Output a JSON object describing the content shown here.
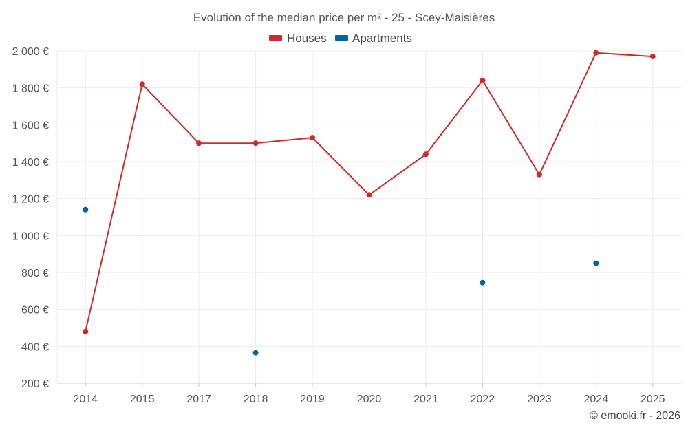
{
  "chart_data": {
    "type": "line",
    "title": "Evolution of the median price per m² - 25 - Scey-Maisières",
    "categories": [
      "2014",
      "2015",
      "2017",
      "2018",
      "2019",
      "2020",
      "2021",
      "2022",
      "2023",
      "2024",
      "2025"
    ],
    "series": [
      {
        "name": "Houses",
        "color": "#d62728",
        "values": [
          480,
          1820,
          1500,
          1500,
          1530,
          1220,
          1440,
          1840,
          1330,
          1990,
          1970
        ],
        "style": "line-with-markers"
      },
      {
        "name": "Apartments",
        "color": "#00669e",
        "values": [
          1140,
          null,
          null,
          365,
          null,
          null,
          null,
          745,
          null,
          850,
          null
        ],
        "style": "markers-only"
      }
    ],
    "ylim": [
      200,
      2000
    ],
    "yticks": [
      200,
      400,
      600,
      800,
      1000,
      1200,
      1400,
      1600,
      1800,
      2000
    ],
    "ytick_labels": [
      "200 €",
      "400 €",
      "600 €",
      "800 €",
      "1 000 €",
      "1 200 €",
      "1 400 €",
      "1 600 €",
      "1 800 €",
      "2 000 €"
    ],
    "xlabel": "",
    "ylabel": "",
    "legend_position": "top-center",
    "grid": true
  },
  "credit": "© emooki.fr - 2026"
}
